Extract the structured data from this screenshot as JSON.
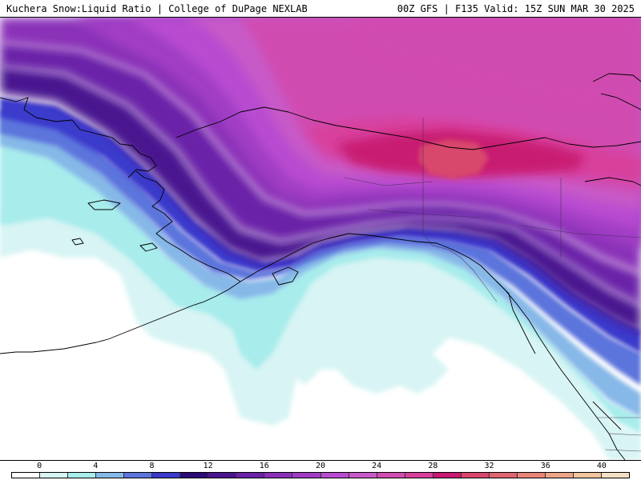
{
  "header": {
    "title_left": "Kuchera Snow:Liquid Ratio | College of DuPage NEXLAB",
    "title_right": "00Z GFS | F135 Valid: 15Z SUN MAR 30 2025"
  },
  "colorbar": {
    "tick_labels": [
      "0",
      "4",
      "8",
      "12",
      "16",
      "20",
      "24",
      "28",
      "32",
      "36",
      "40"
    ],
    "colors": [
      "#ffffff",
      "#d8f4f4",
      "#a8ecec",
      "#86b8e8",
      "#5c74dc",
      "#3a3acc",
      "#2c0a78",
      "#4a1490",
      "#6a22a8",
      "#8a30b8",
      "#a03cc4",
      "#b84cd0",
      "#c85ac8",
      "#d04cb0",
      "#d8409c",
      "#c81a72",
      "#d8466c",
      "#e06470",
      "#e88478",
      "#eca488",
      "#f0c49c",
      "#f6e0c4"
    ],
    "fill_colors": {
      "ratio_0_2": "#ffffff",
      "ratio_2_4": "#d8f4f4",
      "ratio_4_6": "#a8ecec",
      "ratio_6_8": "#86b8e8",
      "ratio_8_10": "#5c74dc",
      "ratio_10_12": "#3a3acc",
      "ratio_12_14": "#4a1490",
      "ratio_14_16": "#6a22a8",
      "ratio_16_18": "#8a30b8",
      "ratio_18_20": "#a03cc4",
      "ratio_20_22": "#b84cd0",
      "ratio_22_24": "#c85ac8",
      "ratio_24_26": "#d04cb0",
      "ratio_26_28": "#d8409c",
      "ratio_28_30": "#c81a72",
      "ratio_30_32": "#d8466c"
    }
  }
}
